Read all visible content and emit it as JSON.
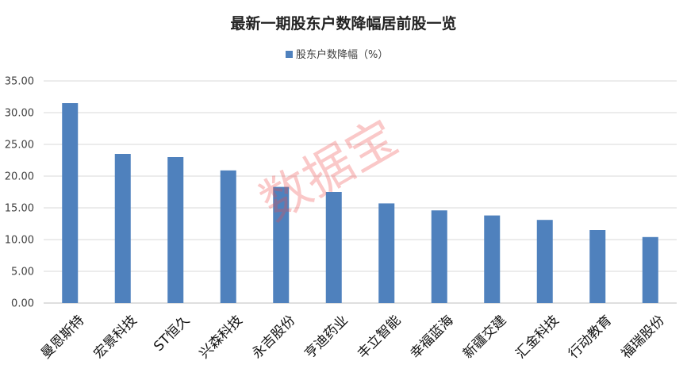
{
  "chart_data": {
    "type": "bar",
    "title": "最新一期股东户数降幅居前股一览",
    "legend": {
      "label": "股东户数降幅（%）",
      "position": "top"
    },
    "categories": [
      "曼恩斯特",
      "宏景科技",
      "ST恒久",
      "兴森科技",
      "永吉股份",
      "亨迪药业",
      "丰立智能",
      "幸福蓝海",
      "新疆交建",
      "汇金科技",
      "行动教育",
      "福瑞股份"
    ],
    "values": [
      31.5,
      23.5,
      23.0,
      20.9,
      18.3,
      17.5,
      15.7,
      14.6,
      13.8,
      13.1,
      11.5,
      10.4
    ],
    "ylim": [
      0,
      35
    ],
    "yticks": [
      "0.00",
      "5.00",
      "10.00",
      "15.00",
      "20.00",
      "25.00",
      "30.00",
      "35.00"
    ],
    "grid": true,
    "color": "#4f81bd",
    "watermark": "数据宝"
  }
}
